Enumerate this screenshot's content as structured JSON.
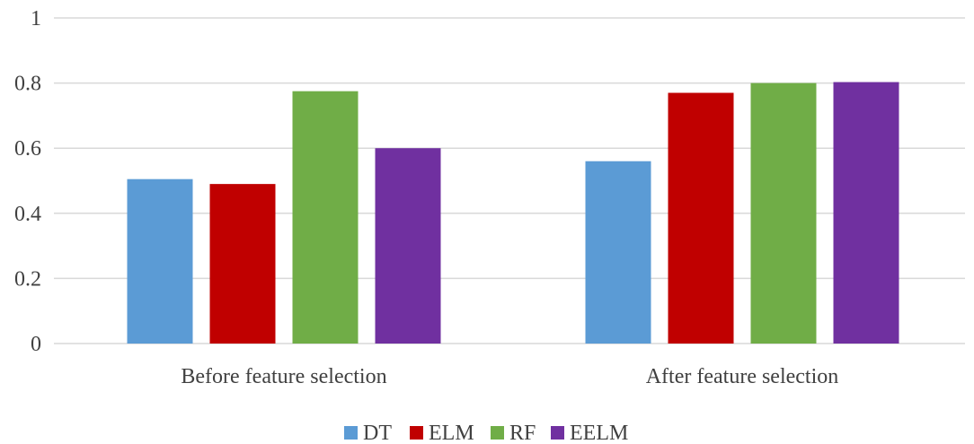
{
  "chart_data": {
    "type": "bar",
    "categories": [
      "Before feature selection",
      "After feature selection"
    ],
    "series": [
      {
        "name": "DT",
        "values": [
          0.505,
          0.56
        ],
        "color": "#5b9bd5"
      },
      {
        "name": "ELM",
        "values": [
          0.49,
          0.77
        ],
        "color": "#c00000"
      },
      {
        "name": "RF",
        "values": [
          0.775,
          0.8
        ],
        "color": "#70ad47"
      },
      {
        "name": "EELM",
        "values": [
          0.6,
          0.803
        ],
        "color": "#7030a0"
      }
    ],
    "y_ticks": [
      "0",
      "0.2",
      "0.4",
      "0.6",
      "0.8",
      "1"
    ],
    "ylim": [
      0,
      1
    ],
    "grid": true,
    "legend_position": "bottom",
    "title": "",
    "xlabel": "",
    "ylabel": ""
  }
}
